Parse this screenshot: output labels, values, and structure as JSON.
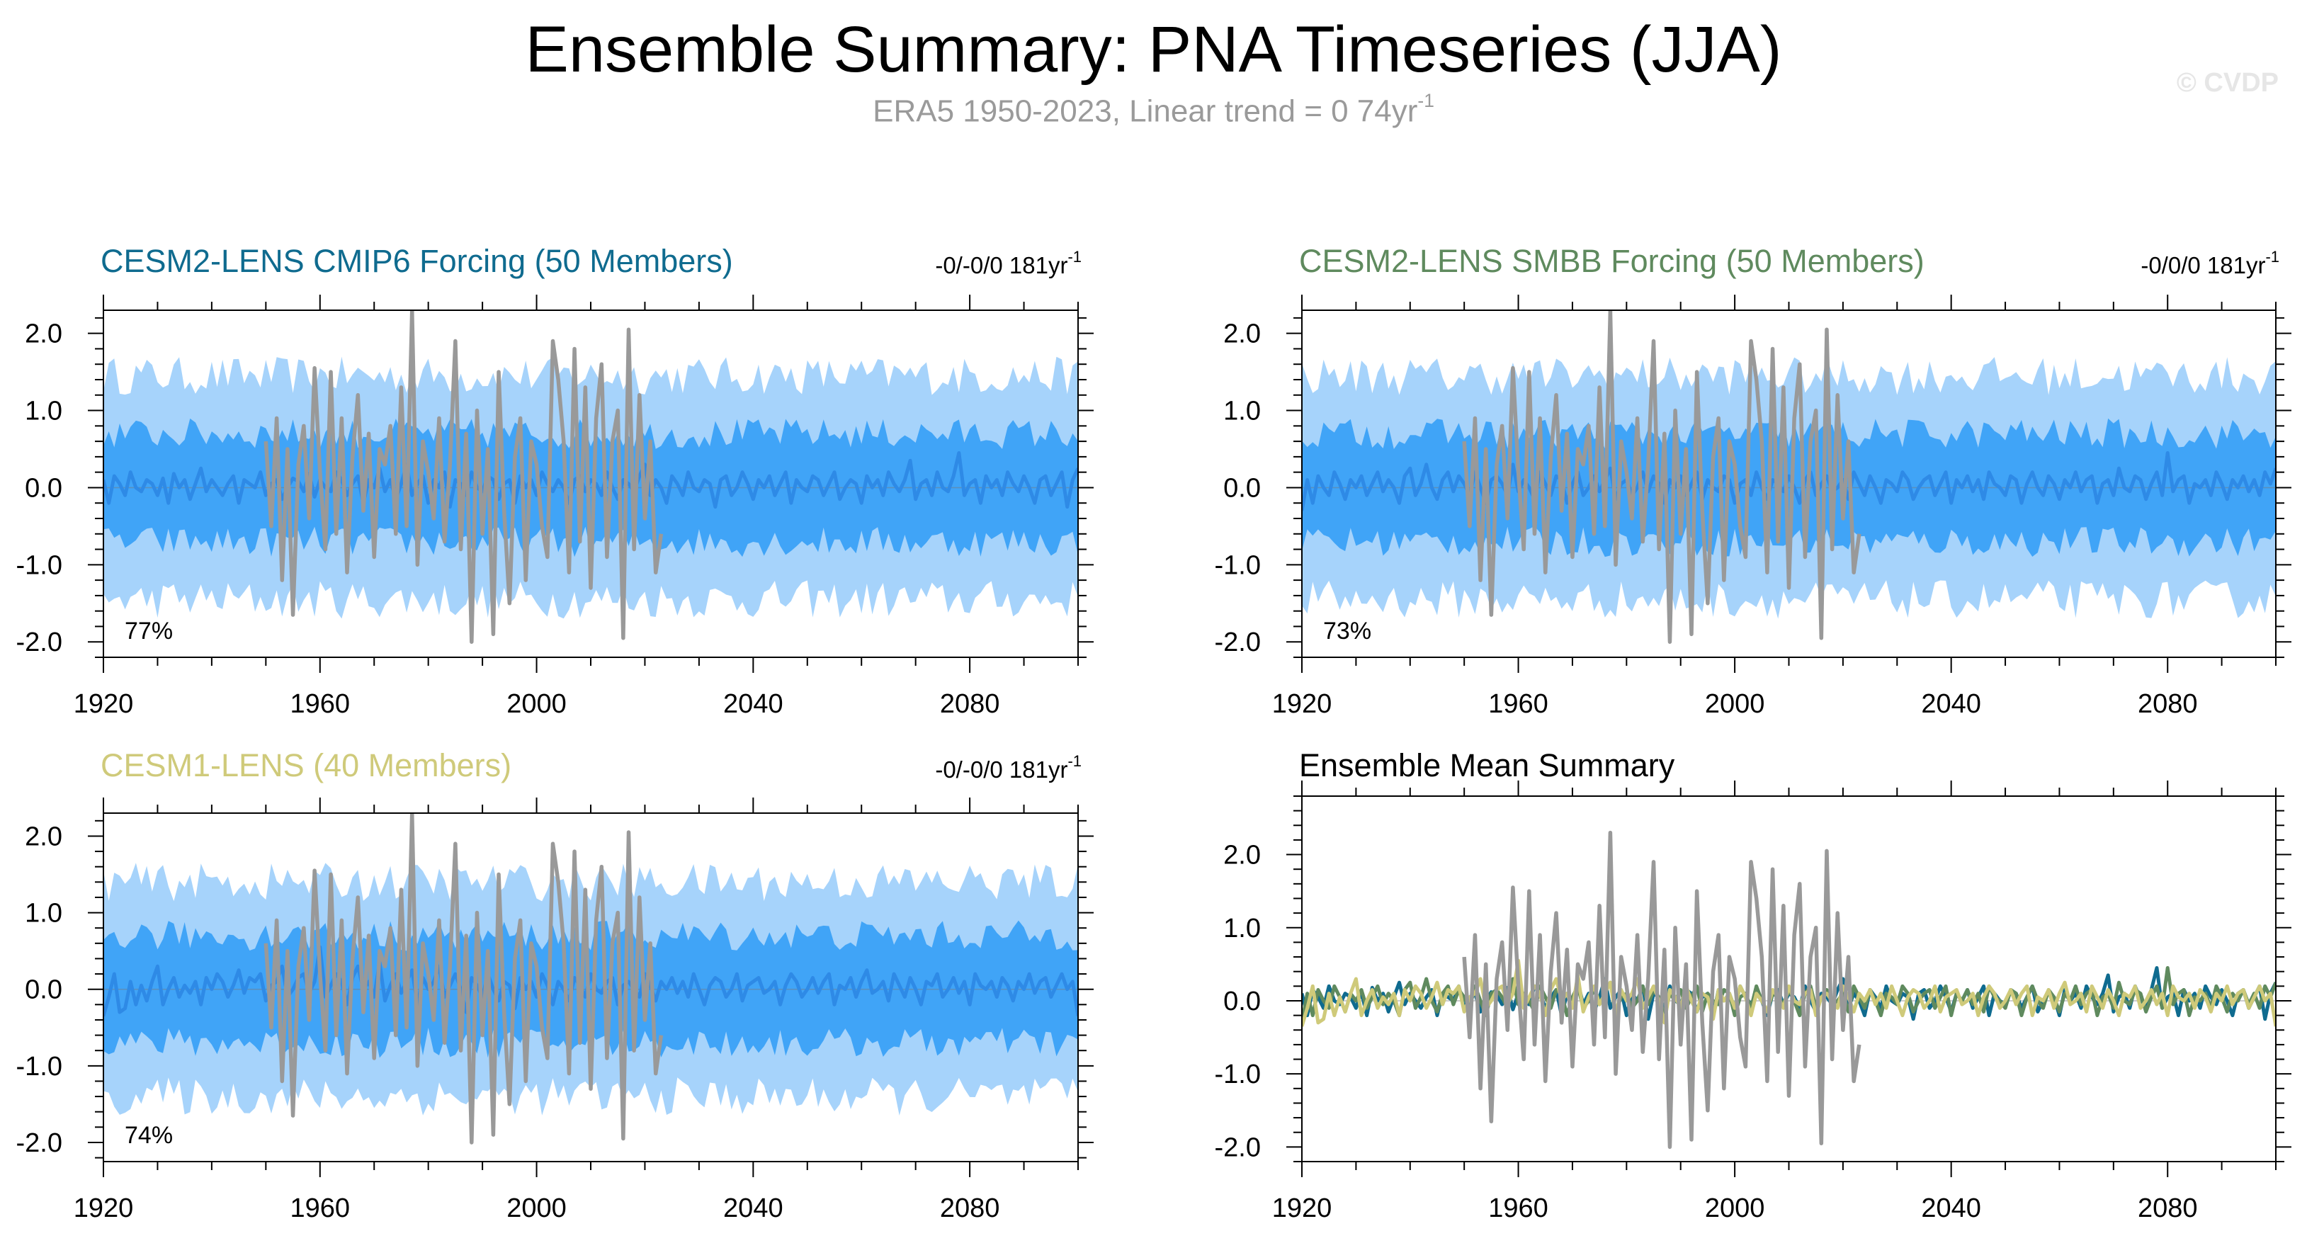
{
  "header": {
    "title": "Ensemble Summary: PNA Timeseries (JJA)",
    "subtitle_text": "ERA5 1950-2023, Linear trend = 0 74yr",
    "subtitle_exp": "-1",
    "watermark": "© CVDP"
  },
  "colors": {
    "band_outer": "#a6d3fb",
    "band_inner": "#40a4f7",
    "ens_mean": "#2e8ae6",
    "obs": "#999999",
    "cmip6": "#0f6b8f",
    "smbb": "#5f8a5e",
    "cesm1": "#cfca7a"
  },
  "chart_data": [
    {
      "type": "area",
      "title": "CESM2-LENS CMIP6 Forcing (50 Members)",
      "trend_text": "-0/-0/0 181yr",
      "trend_exp": "-1",
      "pct_label": "77%",
      "xlim": [
        1920,
        2100
      ],
      "ylim": [
        -2.2,
        2.3
      ],
      "xticks": [
        1920,
        1960,
        2000,
        2040,
        2080
      ],
      "yticks": [
        -2.0,
        -1.0,
        0.0,
        1.0,
        2.0
      ],
      "ytick_labels": [
        "-2.0",
        "-1.0",
        "0.0",
        "1.0",
        "2.0"
      ],
      "series": [
        {
          "kind": "band",
          "role": "outer",
          "lower": -1.45,
          "upper": 1.45,
          "noise": 0.25
        },
        {
          "kind": "band",
          "role": "inner",
          "lower": -0.7,
          "upper": 0.7,
          "noise": 0.2
        },
        {
          "kind": "line",
          "role": "ensemble-mean",
          "noise": 0.12
        },
        {
          "kind": "line",
          "role": "observations",
          "x_range": [
            1950,
            2023
          ]
        }
      ]
    },
    {
      "type": "area",
      "title": "CESM2-LENS SMBB Forcing (50 Members)",
      "trend_text": "-0/0/0 181yr",
      "trend_exp": "-1",
      "pct_label": "73%",
      "xlim": [
        1920,
        2100
      ],
      "ylim": [
        -2.2,
        2.3
      ],
      "xticks": [
        1920,
        1960,
        2000,
        2040,
        2080
      ],
      "yticks": [
        -2.0,
        -1.0,
        0.0,
        1.0,
        2.0
      ],
      "ytick_labels": [
        "-2.0",
        "-1.0",
        "0.0",
        "1.0",
        "2.0"
      ],
      "series": [
        {
          "kind": "band",
          "role": "outer",
          "lower": -1.45,
          "upper": 1.45,
          "noise": 0.25
        },
        {
          "kind": "band",
          "role": "inner",
          "lower": -0.7,
          "upper": 0.7,
          "noise": 0.2
        },
        {
          "kind": "line",
          "role": "ensemble-mean",
          "noise": 0.12
        },
        {
          "kind": "line",
          "role": "observations",
          "x_range": [
            1950,
            2023
          ]
        }
      ]
    },
    {
      "type": "area",
      "title": "CESM1-LENS (40 Members)",
      "trend_text": "-0/-0/0 181yr",
      "trend_exp": "-1",
      "pct_label": "74%",
      "xlim": [
        1920,
        2100
      ],
      "ylim": [
        -2.25,
        2.3
      ],
      "xticks": [
        1920,
        1960,
        2000,
        2040,
        2080
      ],
      "yticks": [
        -2.0,
        -1.0,
        0.0,
        1.0,
        2.0
      ],
      "ytick_labels": [
        "-2.0",
        "-1.0",
        "0.0",
        "1.0",
        "2.0"
      ],
      "series": [
        {
          "kind": "band",
          "role": "outer",
          "lower": -1.4,
          "upper": 1.4,
          "noise": 0.25
        },
        {
          "kind": "band",
          "role": "inner",
          "lower": -0.7,
          "upper": 0.7,
          "noise": 0.2
        },
        {
          "kind": "line",
          "role": "ensemble-mean",
          "noise": 0.12
        },
        {
          "kind": "line",
          "role": "observations",
          "x_range": [
            1950,
            2023
          ]
        }
      ]
    },
    {
      "type": "line",
      "title": "Ensemble Mean Summary",
      "xlim": [
        1920,
        2100
      ],
      "ylim": [
        -2.2,
        2.8
      ],
      "xticks": [
        1920,
        1960,
        2000,
        2040,
        2080
      ],
      "yticks": [
        -2.0,
        -1.0,
        0.0,
        1.0,
        2.0
      ],
      "ytick_labels": [
        "-2.0",
        "-1.0",
        "0.0",
        "1.0",
        "2.0"
      ],
      "series": [
        {
          "kind": "line",
          "role": "observations",
          "x_range": [
            1950,
            2023
          ]
        },
        {
          "kind": "line",
          "role": "cmip6-mean",
          "color_key": "cmip6"
        },
        {
          "kind": "line",
          "role": "smbb-mean",
          "color_key": "smbb"
        },
        {
          "kind": "line",
          "role": "cesm1-mean",
          "color_key": "cesm1"
        }
      ]
    }
  ],
  "observations": {
    "x_start": 1950,
    "values": [
      0.6,
      -0.5,
      0.9,
      -1.2,
      0.5,
      -1.65,
      0.3,
      0.8,
      -0.4,
      1.55,
      0.2,
      -0.8,
      1.5,
      -0.6,
      0.9,
      -1.1,
      0.4,
      1.2,
      -0.3,
      0.7,
      -0.9,
      0.5,
      0.3,
      0.8,
      -0.6,
      1.3,
      -0.5,
      2.3,
      -1.0,
      0.6,
      0.2,
      -0.4,
      0.9,
      -0.7,
      0.3,
      1.9,
      -0.8,
      0.7,
      -2.0,
      1.0,
      -0.6,
      0.5,
      -1.9,
      1.5,
      -0.3,
      -1.5,
      0.4,
      0.9,
      -1.2,
      0.6,
      0.3,
      -0.5,
      -0.9,
      1.9,
      1.4,
      0.6,
      -1.1,
      1.8,
      -0.7,
      1.3,
      -1.3,
      0.9,
      1.6,
      -0.9,
      0.6,
      1.0,
      -1.95,
      2.05,
      -0.8,
      1.2,
      -0.4,
      0.6,
      -1.1,
      -0.6
    ]
  },
  "ens_means": {
    "cmip6": [
      0.1,
      -0.2,
      0.15,
      0.05,
      -0.1,
      0.2,
      0.0,
      -0.05,
      0.1,
      0.05,
      -0.1,
      0.12,
      -0.2,
      0.18,
      0.0,
      0.1,
      -0.15,
      0.05,
      0.25,
      -0.05,
      0.1,
      0.0,
      -0.1,
      0.05,
      0.15,
      -0.2,
      0.1,
      0.05,
      0.0,
      0.2,
      -0.1,
      0.05,
      0.1,
      -0.15,
      0.0,
      0.12,
      0.08,
      -0.05,
      0.18,
      -0.12,
      0.1,
      0.0,
      -0.05,
      0.2,
      0.1,
      -0.1,
      0.05,
      0.15,
      -0.2,
      0.1,
      0.0,
      0.25,
      -0.05,
      0.1,
      -0.15,
      0.05,
      0.3,
      -0.1,
      0.05,
      0.15,
      -0.2,
      0.1,
      0.0,
      0.2,
      -0.25,
      0.1,
      0.05,
      -0.1,
      0.2,
      0.0,
      -0.05,
      0.15,
      0.1,
      -0.15,
      0.05,
      0.1,
      -0.2,
      0.15,
      0.0,
      0.1,
      -0.1,
      0.2,
      0.05,
      -0.05,
      0.1,
      0.0,
      -0.2,
      0.1,
      0.15,
      -0.05,
      0.1,
      0.05,
      -0.1,
      0.2,
      0.0,
      -0.15,
      0.1,
      0.05,
      -0.05,
      0.15,
      0.3,
      -0.1,
      0.1,
      0.0,
      -0.2,
      0.15,
      0.05,
      -0.1,
      0.2,
      0.0,
      -0.05,
      0.1,
      0.05,
      -0.25,
      0.1,
      0.15,
      -0.1,
      0.0,
      0.2,
      0.05,
      -0.15,
      0.1,
      0.0,
      0.15,
      -0.1,
      0.05,
      0.2,
      -0.2,
      0.1,
      0.0,
      -0.05,
      0.15,
      0.1,
      -0.1,
      0.05,
      0.2,
      -0.15,
      0.0,
      0.1,
      0.05,
      -0.2,
      0.15,
      0.0,
      0.1,
      -0.1,
      0.2,
      0.05,
      -0.05,
      0.1,
      0.35,
      -0.15,
      0.05,
      0.1,
      -0.1,
      0.2,
      0.0,
      -0.05,
      0.15,
      0.45,
      -0.1,
      0.05,
      0.1,
      -0.2,
      0.15,
      0.0,
      0.1,
      -0.1,
      0.2,
      0.05,
      -0.05,
      0.15,
      0.0,
      -0.2,
      0.1,
      0.15,
      -0.1,
      0.05,
      0.2,
      -0.25,
      0.1,
      0.25
    ],
    "smbb": [
      -0.3,
      0.1,
      -0.2,
      0.15,
      0.0,
      -0.1,
      0.2,
      0.05,
      -0.15,
      0.1,
      0.0,
      0.15,
      -0.1,
      0.05,
      0.2,
      -0.05,
      0.1,
      0.0,
      -0.2,
      0.15,
      0.25,
      -0.1,
      0.05,
      0.3,
      0.0,
      -0.15,
      0.1,
      0.2,
      -0.05,
      0.15,
      0.05,
      -0.1,
      0.2,
      0.0,
      -0.2,
      0.1,
      0.15,
      0.05,
      -0.1,
      0.3,
      -0.05,
      0.1,
      0.0,
      -0.15,
      0.2,
      0.05,
      -0.1,
      0.15,
      0.1,
      -0.2,
      0.05,
      0.2,
      -0.1,
      0.0,
      0.15,
      -0.05,
      0.1,
      0.25,
      -0.15,
      0.05,
      0.1,
      -0.1,
      0.0,
      0.2,
      -0.05,
      0.15,
      0.05,
      -0.2,
      0.1,
      0.0,
      0.15,
      -0.1,
      0.05,
      0.2,
      -0.15,
      0.1,
      0.0,
      -0.05,
      0.15,
      0.1,
      -0.2,
      0.05,
      0.1,
      -0.1,
      0.2,
      0.0,
      -0.15,
      0.1,
      0.05,
      -0.05,
      0.15,
      0.0,
      -0.2,
      0.1,
      0.2,
      -0.1,
      0.05,
      0.15,
      -0.05,
      0.0,
      0.1,
      -0.15,
      0.2,
      0.05,
      -0.1,
      0.15,
      0.0,
      -0.2,
      0.1,
      0.05,
      -0.05,
      0.2,
      0.1,
      -0.15,
      0.0,
      0.1,
      0.15,
      -0.1,
      0.05,
      0.2,
      -0.2,
      0.1,
      0.0,
      0.15,
      -0.05,
      0.1,
      -0.15,
      0.2,
      0.05,
      0.0,
      -0.1,
      0.15,
      0.1,
      -0.2,
      0.05,
      0.2,
      0.0,
      -0.1,
      0.15,
      0.05,
      -0.15,
      0.1,
      0.0,
      0.2,
      -0.05,
      0.1,
      0.15,
      -0.2,
      0.05,
      0.1,
      -0.1,
      0.25,
      0.0,
      -0.05,
      0.15,
      0.1,
      -0.15,
      0.05,
      0.2,
      -0.1,
      0.45,
      -0.05,
      0.1,
      0.15,
      -0.2,
      0.05,
      0.0,
      0.1,
      -0.1,
      0.2,
      0.05,
      -0.15,
      0.1,
      0.0,
      0.15,
      -0.05,
      0.1,
      -0.1,
      0.2,
      0.05,
      0.25
    ],
    "cesm1": [
      -0.35,
      -0.1,
      0.2,
      -0.3,
      -0.25,
      0.1,
      -0.2,
      0.05,
      -0.15,
      0.1,
      0.3,
      -0.2,
      0.0,
      0.15,
      -0.1,
      0.05,
      -0.05,
      0.1,
      -0.2,
      0.15,
      0.0,
      0.2,
      0.1,
      -0.1,
      0.05,
      0.25,
      -0.05,
      0.15,
      0.1,
      0.2,
      -0.15,
      0.05,
      0.1,
      0.3,
      -0.1,
      0.0,
      0.15,
      0.2,
      -0.05,
      0.1,
      0.55,
      -0.1,
      0.05,
      0.2,
      0.1,
      -0.2,
      0.15,
      0.3,
      0.0,
      0.1,
      -0.1,
      0.35,
      -0.15,
      0.05,
      0.2,
      -0.05,
      0.1,
      0.25,
      -0.2,
      0.15,
      0.0,
      0.1,
      0.3,
      -0.1,
      0.05,
      0.2,
      0.0,
      -0.3,
      0.15,
      0.05,
      -0.1,
      0.2,
      0.0,
      -0.15,
      0.1,
      0.05,
      -0.25,
      0.15,
      0.0,
      0.1,
      -0.1,
      0.2,
      0.05,
      -0.2,
      0.1,
      0.0,
      -0.15,
      0.15,
      0.05,
      -0.1,
      0.2,
      0.0,
      -0.05,
      0.1,
      0.15,
      -0.2,
      0.05,
      0.1,
      0.0,
      -0.1,
      0.2,
      0.05,
      -0.15,
      0.1,
      0.0,
      0.15,
      -0.05,
      0.1,
      -0.1,
      0.2,
      0.0,
      -0.2,
      0.05,
      0.15,
      0.1,
      -0.1,
      0.0,
      0.2,
      -0.15,
      0.05,
      0.1,
      0.15,
      -0.05,
      0.0,
      0.1,
      -0.2,
      0.05,
      0.2,
      0.1,
      -0.1,
      0.0,
      0.15,
      -0.05,
      0.1,
      0.2,
      -0.2,
      0.05,
      0.0,
      0.15,
      -0.1,
      0.1,
      0.25,
      -0.05,
      0.0,
      0.1,
      -0.15,
      0.2,
      0.05,
      -0.1,
      0.15,
      0.0,
      -0.2,
      0.1,
      0.05,
      0.2,
      -0.1,
      0.0,
      0.15,
      -0.05,
      0.1,
      -0.2,
      0.2,
      0.05,
      0.0,
      0.1,
      -0.1,
      0.15,
      0.05,
      -0.15,
      0.1,
      0.0,
      0.2,
      -0.05,
      0.1,
      0.15,
      -0.1,
      0.05,
      0.2,
      0.0,
      0.1
    ]
  }
}
